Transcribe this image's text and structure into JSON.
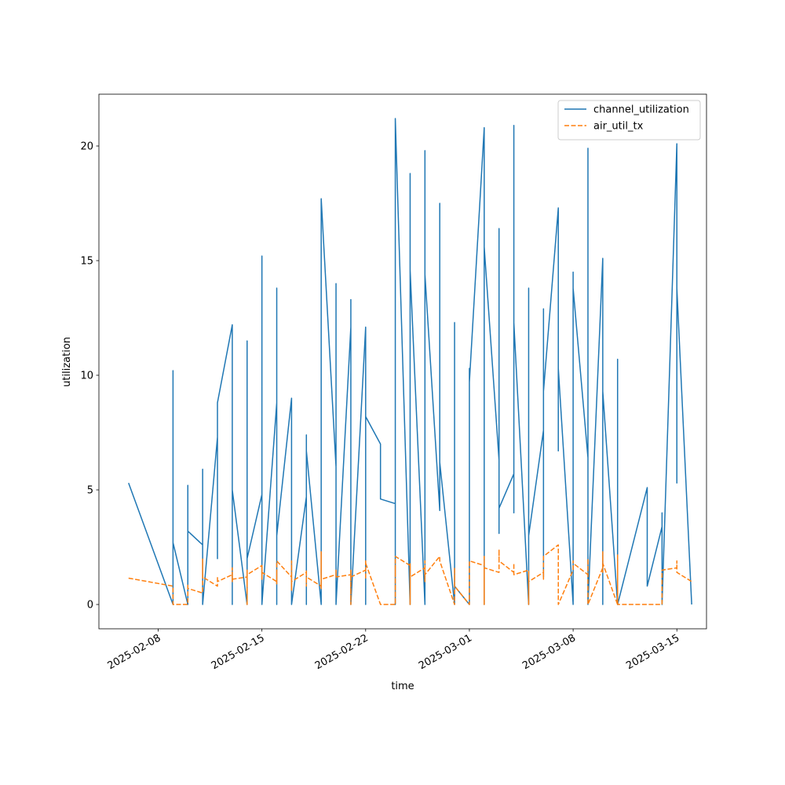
{
  "chart_data": {
    "type": "line",
    "xlabel": "time",
    "ylabel": "utilization",
    "x": [
      "2025-02-06",
      "2025-02-09",
      "2025-02-09",
      "2025-02-09",
      "2025-02-10",
      "2025-02-10",
      "2025-02-10",
      "2025-02-11",
      "2025-02-11",
      "2025-02-11",
      "2025-02-11",
      "2025-02-12",
      "2025-02-12",
      "2025-02-12",
      "2025-02-12",
      "2025-02-13",
      "2025-02-13",
      "2025-02-13",
      "2025-02-13",
      "2025-02-13",
      "2025-02-13",
      "2025-02-14",
      "2025-02-14",
      "2025-02-14",
      "2025-02-14",
      "2025-02-14",
      "2025-02-14",
      "2025-02-14",
      "2025-02-14",
      "2025-02-15",
      "2025-02-15",
      "2025-02-15",
      "2025-02-15",
      "2025-02-15",
      "2025-02-16",
      "2025-02-16",
      "2025-02-16",
      "2025-02-16",
      "2025-02-16",
      "2025-02-16",
      "2025-02-17",
      "2025-02-17",
      "2025-02-17",
      "2025-02-17",
      "2025-02-17",
      "2025-02-17",
      "2025-02-18",
      "2025-02-18",
      "2025-02-18",
      "2025-02-18",
      "2025-02-18",
      "2025-02-18",
      "2025-02-19",
      "2025-02-19",
      "2025-02-19",
      "2025-02-19",
      "2025-02-19",
      "2025-02-19",
      "2025-02-19",
      "2025-02-19",
      "2025-02-19",
      "2025-02-19",
      "2025-02-20",
      "2025-02-20",
      "2025-02-20",
      "2025-02-20",
      "2025-02-20",
      "2025-02-21",
      "2025-02-21",
      "2025-02-21",
      "2025-02-21",
      "2025-02-21",
      "2025-02-22",
      "2025-02-22",
      "2025-02-22",
      "2025-02-22",
      "2025-02-22",
      "2025-02-22",
      "2025-02-23",
      "2025-02-23",
      "2025-02-24",
      "2025-02-24",
      "2025-02-24",
      "2025-02-24",
      "2025-02-24",
      "2025-02-24",
      "2025-02-24",
      "2025-02-24",
      "2025-02-25",
      "2025-02-25",
      "2025-02-25",
      "2025-02-25",
      "2025-02-25",
      "2025-02-25",
      "2025-02-26",
      "2025-02-26",
      "2025-02-26",
      "2025-02-26",
      "2025-02-26",
      "2025-02-26",
      "2025-02-26",
      "2025-02-27",
      "2025-02-27",
      "2025-02-27",
      "2025-02-28",
      "2025-02-28",
      "2025-02-28",
      "2025-03-01",
      "2025-03-01",
      "2025-03-01",
      "2025-03-02",
      "2025-03-02",
      "2025-03-02",
      "2025-03-02",
      "2025-03-02",
      "2025-03-03",
      "2025-03-03",
      "2025-03-03",
      "2025-03-03",
      "2025-03-03",
      "2025-03-04",
      "2025-03-04",
      "2025-03-04",
      "2025-03-04",
      "2025-03-05",
      "2025-03-05",
      "2025-03-05",
      "2025-03-05",
      "2025-03-05",
      "2025-03-06",
      "2025-03-06",
      "2025-03-06",
      "2025-03-06",
      "2025-03-06",
      "2025-03-07",
      "2025-03-07",
      "2025-03-07",
      "2025-03-07",
      "2025-03-07",
      "2025-03-08",
      "2025-03-08",
      "2025-03-08",
      "2025-03-09",
      "2025-03-09",
      "2025-03-09",
      "2025-03-09",
      "2025-03-09",
      "2025-03-10",
      "2025-03-10",
      "2025-03-10",
      "2025-03-10",
      "2025-03-10",
      "2025-03-11",
      "2025-03-11",
      "2025-03-11",
      "2025-03-11",
      "2025-03-11",
      "2025-03-11",
      "2025-03-13",
      "2025-03-13",
      "2025-03-14",
      "2025-03-14",
      "2025-03-14",
      "2025-03-15",
      "2025-03-15",
      "2025-03-15",
      "2025-03-16"
    ],
    "series": [
      {
        "name": "channel_utilization",
        "color": "#1f77b4",
        "linestyle": "solid",
        "values": [
          5.3,
          0,
          10.2,
          2.7,
          0,
          5.2,
          3.2,
          2.6,
          3.4,
          5.9,
          0,
          7.3,
          3.5,
          2.0,
          8.8,
          12.2,
          2.0,
          6.4,
          3.0,
          0,
          5.0,
          0,
          6.9,
          11.5,
          0,
          10.6,
          2.5,
          4.4,
          2.0,
          4.8,
          15.2,
          0,
          9.5,
          0,
          8.8,
          1.0,
          13.8,
          0,
          8.2,
          3.0,
          9.0,
          0,
          7.0,
          3.5,
          8.8,
          0,
          4.7,
          2.8,
          0,
          7.4,
          0,
          6.7,
          0,
          4.9,
          0,
          7.4,
          0,
          4.5,
          0,
          10.6,
          15.7,
          17.7,
          6.0,
          14.0,
          0,
          3.4,
          0,
          12.1,
          13.3,
          0,
          8.0,
          0,
          12.1,
          2.7,
          11.5,
          10.1,
          0,
          8.2,
          7.0,
          4.6,
          4.4,
          2.2,
          0,
          14.4,
          2.0,
          13.1,
          0,
          21.2,
          0,
          18.8,
          2.5,
          8.7,
          0,
          14.6,
          0,
          19.8,
          3.3,
          10.7,
          0,
          9.6,
          14.4,
          4.1,
          17.5,
          6.2,
          0,
          12.3,
          0.8,
          0,
          10.3,
          9.7,
          20.8,
          5.0,
          16.9,
          0,
          15.6,
          6.3,
          11.8,
          3.1,
          16.4,
          4.2,
          5.7,
          20.9,
          4.0,
          12.3,
          0,
          13.8,
          0,
          7.2,
          3.0,
          7.6,
          1.2,
          12.9,
          10.6,
          9.3,
          17.3,
          8.0,
          13.6,
          6.7,
          10.3,
          0,
          14.5,
          13.8,
          6.4,
          19.9,
          7.0,
          15.5,
          0,
          15.1,
          0,
          14.9,
          8.2,
          9.3,
          0,
          6.6,
          0,
          10.7,
          8.6,
          0,
          5.1,
          0.8,
          3.4,
          4.0,
          0,
          20.1,
          5.3,
          13.8,
          0
        ]
      },
      {
        "name": "air_util_tx",
        "color": "#ff7f0e",
        "linestyle": "dashed",
        "values": [
          1.15,
          0.8,
          0,
          0,
          0,
          0.9,
          0.7,
          0.5,
          1.1,
          2.0,
          1.2,
          0.8,
          1.2,
          1.1,
          1.0,
          1.3,
          1.1,
          1.6,
          1.0,
          1.3,
          1.1,
          1.2,
          1.0,
          1.3,
          0,
          1.4,
          1.2,
          1.5,
          1.3,
          1.7,
          1.1,
          1.6,
          1.2,
          1.4,
          1.0,
          1.5,
          1.3,
          1.0,
          0.9,
          1.9,
          1.2,
          1.0,
          1.1,
          0.6,
          1.9,
          1.0,
          1.4,
          0.9,
          1.5,
          1.0,
          0.8,
          1.2,
          0.8,
          1.0,
          1.2,
          0.7,
          0.9,
          0.8,
          1.3,
          2.3,
          1.5,
          1.1,
          1.3,
          1.4,
          1.2,
          1.5,
          1.2,
          1.3,
          1.5,
          0,
          1.3,
          1.2,
          1.5,
          1.4,
          1.1,
          1.9,
          1.9,
          1.8,
          0,
          0,
          0,
          0,
          0,
          1.9,
          0,
          1.5,
          1.2,
          2.1,
          1.7,
          1.4,
          0,
          1.5,
          1.8,
          1.2,
          1.6,
          1.3,
          1.7,
          1.6,
          1.0,
          1.9,
          1.3,
          2.1,
          1.9,
          1.9,
          0,
          1.6,
          0.8,
          0,
          1.5,
          1.9,
          1.7,
          1.8,
          2.1,
          0,
          1.6,
          1.4,
          1.6,
          2.3,
          2.4,
          1.9,
          1.4,
          1.8,
          1.6,
          1.3,
          1.5,
          0,
          0.6,
          1.3,
          1.0,
          1.4,
          1.1,
          1.8,
          2.0,
          2.1,
          2.6,
          2.1,
          1.8,
          1.5,
          0,
          1.5,
          1.9,
          1.8,
          1.3,
          2.0,
          1.5,
          1.2,
          0,
          1.6,
          1.4,
          2.0,
          2.3,
          1.8,
          0,
          1.9,
          1.4,
          2.2,
          1.9,
          0,
          0,
          0,
          0,
          1.3,
          1.5,
          1.6,
          1.9,
          1.4,
          1.0
        ]
      }
    ],
    "xlim": [
      "2025-02-04",
      "2025-03-17"
    ],
    "xticks": [
      "2025-02-08",
      "2025-02-15",
      "2025-02-22",
      "2025-03-01",
      "2025-03-08",
      "2025-03-15"
    ],
    "ylim": [
      -1.06,
      22.26
    ],
    "yticks": [
      0,
      5,
      10,
      15,
      20
    ],
    "legend": "upper right"
  }
}
